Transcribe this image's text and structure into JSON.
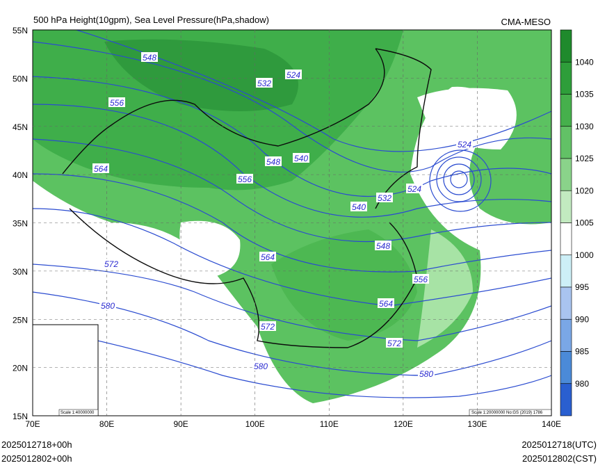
{
  "header": {
    "title": "500 hPa Height(10gpm), Sea Level Pressure(hPa,shadow)",
    "source": "CMA-MESO"
  },
  "axes": {
    "lat_labels": [
      "55N",
      "50N",
      "45N",
      "40N",
      "35N",
      "30N",
      "25N",
      "20N",
      "15N"
    ],
    "lon_labels": [
      "70E",
      "80E",
      "90E",
      "100E",
      "110E",
      "120E",
      "130E",
      "140E"
    ]
  },
  "colorbar": {
    "ticks": [
      1040,
      1035,
      1030,
      1025,
      1020,
      1005,
      1000,
      995,
      990,
      985,
      980
    ]
  },
  "contour_labels": [
    548,
    524,
    532,
    556,
    540,
    548,
    564,
    556,
    524,
    524,
    532,
    540,
    548,
    564,
    572,
    556,
    564,
    580,
    572,
    572,
    580,
    580
  ],
  "scale_note": "Scale 1:20000000 No:GS (2019) 1786",
  "inset_scale": "Scale 1:40000000",
  "footer": {
    "left": [
      "2025012718+00h",
      "2025012802+00h"
    ],
    "right": [
      "2025012718(UTC)",
      "2025012802(CST)"
    ]
  }
}
